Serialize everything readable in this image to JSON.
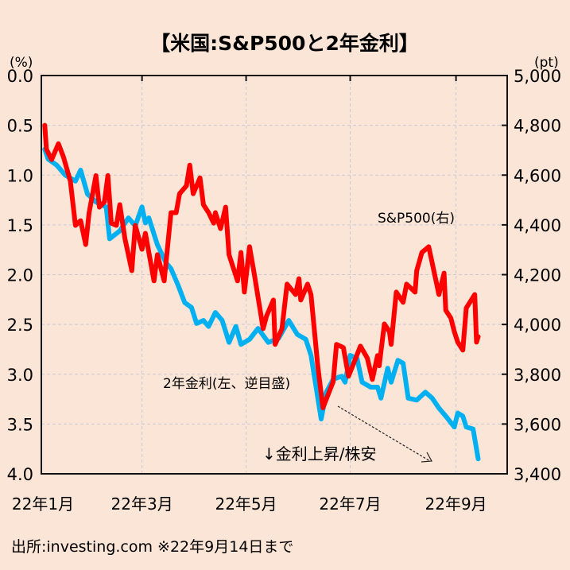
{
  "chart_data": {
    "type": "line",
    "title": "【米国:S&P500と2年金利】",
    "left_axis": {
      "unit_label": "(%)",
      "range": [
        0.0,
        4.0
      ],
      "inverted": true,
      "ticks": [
        "0.0",
        "0.5",
        "1.0",
        "1.5",
        "2.0",
        "2.5",
        "3.0",
        "3.5",
        "4.0"
      ]
    },
    "right_axis": {
      "unit_label": "(pt)",
      "range": [
        3400,
        5000
      ],
      "ticks": [
        "3,400",
        "3,600",
        "3,800",
        "4,000",
        "4,200",
        "4,400",
        "4,600",
        "4,800",
        "5,000"
      ]
    },
    "x_axis": {
      "range": [
        "2022-01-01",
        "2022-10-01"
      ],
      "ticks": [
        {
          "date": "2022-01-01",
          "label": "22年1月"
        },
        {
          "date": "2022-03-01",
          "label": "22年3月"
        },
        {
          "date": "2022-05-01",
          "label": "22年5月"
        },
        {
          "date": "2022-07-01",
          "label": "22年7月"
        },
        {
          "date": "2022-09-01",
          "label": "22年9月"
        }
      ]
    },
    "grid": true,
    "series": [
      {
        "name": "S&P500(右)",
        "axis": "right",
        "color": "#ff0000",
        "points": [
          [
            "2022-01-03",
            4800
          ],
          [
            "2022-01-04",
            4704
          ],
          [
            "2022-01-07",
            4662
          ],
          [
            "2022-01-11",
            4726
          ],
          [
            "2022-01-14",
            4672
          ],
          [
            "2022-01-18",
            4576
          ],
          [
            "2022-01-21",
            4398
          ],
          [
            "2022-01-24",
            4417
          ],
          [
            "2022-01-27",
            4321
          ],
          [
            "2022-01-29",
            4449
          ],
          [
            "2022-02-02",
            4598
          ],
          [
            "2022-02-04",
            4471
          ],
          [
            "2022-02-07",
            4493
          ],
          [
            "2022-02-09",
            4598
          ],
          [
            "2022-02-11",
            4407
          ],
          [
            "2022-02-14",
            4398
          ],
          [
            "2022-02-16",
            4481
          ],
          [
            "2022-02-19",
            4344
          ],
          [
            "2022-02-23",
            4216
          ],
          [
            "2022-02-25",
            4398
          ],
          [
            "2022-03-01",
            4302
          ],
          [
            "2022-03-03",
            4366
          ],
          [
            "2022-03-08",
            4175
          ],
          [
            "2022-03-10",
            4280
          ],
          [
            "2022-03-14",
            4175
          ],
          [
            "2022-03-18",
            4449
          ],
          [
            "2022-03-21",
            4449
          ],
          [
            "2022-03-23",
            4525
          ],
          [
            "2022-03-27",
            4557
          ],
          [
            "2022-03-29",
            4640
          ],
          [
            "2022-03-31",
            4525
          ],
          [
            "2022-04-04",
            4589
          ],
          [
            "2022-04-06",
            4481
          ],
          [
            "2022-04-09",
            4449
          ],
          [
            "2022-04-12",
            4407
          ],
          [
            "2022-04-13",
            4449
          ],
          [
            "2022-04-16",
            4385
          ],
          [
            "2022-04-19",
            4471
          ],
          [
            "2022-04-21",
            4280
          ],
          [
            "2022-04-26",
            4175
          ],
          [
            "2022-04-28",
            4289
          ],
          [
            "2022-04-30",
            4130
          ],
          [
            "2022-05-03",
            4312
          ],
          [
            "2022-05-06",
            4194
          ],
          [
            "2022-05-11",
            3983
          ],
          [
            "2022-05-13",
            4034
          ],
          [
            "2022-05-17",
            4098
          ],
          [
            "2022-05-18",
            3920
          ],
          [
            "2022-05-22",
            3983
          ],
          [
            "2022-05-25",
            4162
          ],
          [
            "2022-05-30",
            4120
          ],
          [
            "2022-06-01",
            4184
          ],
          [
            "2022-06-02",
            4098
          ],
          [
            "2022-06-06",
            4162
          ],
          [
            "2022-06-08",
            4120
          ],
          [
            "2022-06-12",
            3834
          ],
          [
            "2022-06-15",
            3665
          ],
          [
            "2022-06-21",
            3770
          ],
          [
            "2022-06-23",
            3920
          ],
          [
            "2022-06-27",
            3907
          ],
          [
            "2022-06-30",
            3792
          ],
          [
            "2022-07-03",
            3843
          ],
          [
            "2022-07-07",
            3913
          ],
          [
            "2022-07-11",
            3865
          ],
          [
            "2022-07-14",
            3779
          ],
          [
            "2022-07-17",
            3875
          ],
          [
            "2022-07-18",
            3834
          ],
          [
            "2022-07-21",
            4002
          ],
          [
            "2022-07-24",
            3971
          ],
          [
            "2022-07-25",
            3920
          ],
          [
            "2022-07-28",
            4130
          ],
          [
            "2022-08-01",
            4089
          ],
          [
            "2022-08-03",
            4162
          ],
          [
            "2022-08-08",
            4130
          ],
          [
            "2022-08-09",
            4216
          ],
          [
            "2022-08-12",
            4289
          ],
          [
            "2022-08-16",
            4312
          ],
          [
            "2022-08-18",
            4248
          ],
          [
            "2022-08-22",
            4120
          ],
          [
            "2022-08-25",
            4206
          ],
          [
            "2022-08-26",
            4057
          ],
          [
            "2022-08-29",
            4025
          ],
          [
            "2022-08-31",
            3971
          ],
          [
            "2022-09-02",
            3929
          ],
          [
            "2022-09-05",
            3897
          ],
          [
            "2022-09-07",
            4066
          ],
          [
            "2022-09-12",
            4120
          ],
          [
            "2022-09-13",
            3929
          ],
          [
            "2022-09-14",
            3951
          ]
        ]
      },
      {
        "name": "2年金利(左、逆目盛)",
        "axis": "left",
        "color": "#00b0f0",
        "points": [
          [
            "2022-01-03",
            0.74
          ],
          [
            "2022-01-05",
            0.84
          ],
          [
            "2022-01-10",
            0.9
          ],
          [
            "2022-01-15",
            1.0
          ],
          [
            "2022-01-21",
            1.06
          ],
          [
            "2022-01-24",
            0.95
          ],
          [
            "2022-01-28",
            1.19
          ],
          [
            "2022-02-02",
            1.27
          ],
          [
            "2022-02-08",
            1.32
          ],
          [
            "2022-02-10",
            1.64
          ],
          [
            "2022-02-16",
            1.56
          ],
          [
            "2022-02-21",
            1.43
          ],
          [
            "2022-02-25",
            1.51
          ],
          [
            "2022-03-01",
            1.32
          ],
          [
            "2022-03-03",
            1.48
          ],
          [
            "2022-03-05",
            1.43
          ],
          [
            "2022-03-10",
            1.7
          ],
          [
            "2022-03-15",
            1.88
          ],
          [
            "2022-03-18",
            1.94
          ],
          [
            "2022-03-22",
            2.1
          ],
          [
            "2022-03-26",
            2.28
          ],
          [
            "2022-03-30",
            2.33
          ],
          [
            "2022-04-02",
            2.49
          ],
          [
            "2022-04-06",
            2.46
          ],
          [
            "2022-04-09",
            2.52
          ],
          [
            "2022-04-13",
            2.38
          ],
          [
            "2022-04-17",
            2.46
          ],
          [
            "2022-04-21",
            2.68
          ],
          [
            "2022-04-25",
            2.52
          ],
          [
            "2022-04-28",
            2.7
          ],
          [
            "2022-05-03",
            2.65
          ],
          [
            "2022-05-08",
            2.54
          ],
          [
            "2022-05-14",
            2.68
          ],
          [
            "2022-05-20",
            2.64
          ],
          [
            "2022-05-26",
            2.46
          ],
          [
            "2022-05-31",
            2.6
          ],
          [
            "2022-06-05",
            2.65
          ],
          [
            "2022-06-08",
            2.81
          ],
          [
            "2022-06-11",
            3.13
          ],
          [
            "2022-06-14",
            3.45
          ],
          [
            "2022-06-17",
            3.18
          ],
          [
            "2022-06-21",
            3.05
          ],
          [
            "2022-06-26",
            3.02
          ],
          [
            "2022-06-28",
            3.08
          ],
          [
            "2022-07-01",
            2.81
          ],
          [
            "2022-07-05",
            2.84
          ],
          [
            "2022-07-08",
            3.08
          ],
          [
            "2022-07-13",
            3.13
          ],
          [
            "2022-07-17",
            3.13
          ],
          [
            "2022-07-19",
            3.24
          ],
          [
            "2022-07-23",
            2.94
          ],
          [
            "2022-07-25",
            3.08
          ],
          [
            "2022-07-29",
            2.86
          ],
          [
            "2022-08-01",
            2.89
          ],
          [
            "2022-08-04",
            3.24
          ],
          [
            "2022-08-09",
            3.26
          ],
          [
            "2022-08-14",
            3.18
          ],
          [
            "2022-08-18",
            3.24
          ],
          [
            "2022-08-22",
            3.34
          ],
          [
            "2022-08-26",
            3.42
          ],
          [
            "2022-08-31",
            3.53
          ],
          [
            "2022-09-02",
            3.39
          ],
          [
            "2022-09-05",
            3.42
          ],
          [
            "2022-09-07",
            3.53
          ],
          [
            "2022-09-11",
            3.55
          ],
          [
            "2022-09-14",
            3.85
          ]
        ]
      }
    ],
    "annotations": {
      "sp500_label": "S&P500(右)",
      "yield_label": "2年金利(左、逆目盛)",
      "trend_label": "↓金利上昇/株安"
    },
    "source": "出所:investing.com ※22年9月14日まで"
  }
}
